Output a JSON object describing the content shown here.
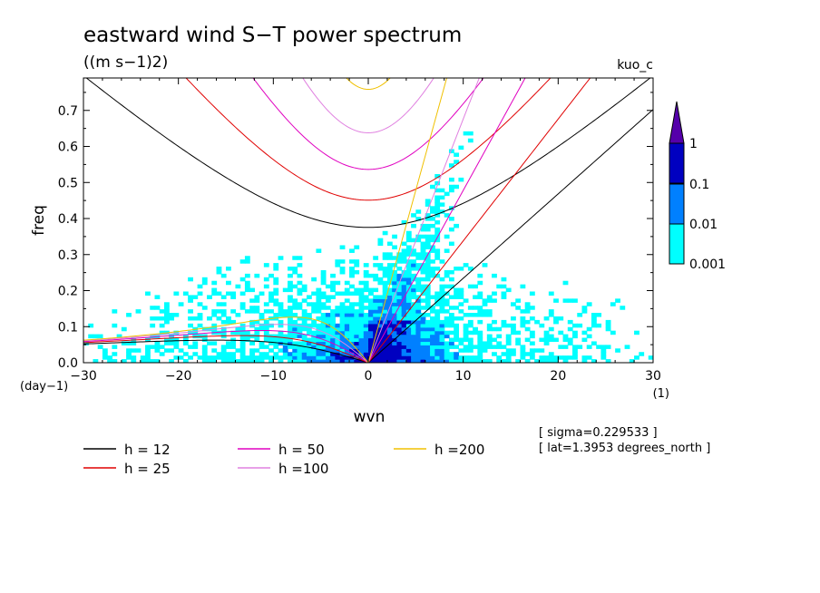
{
  "chart_data": {
    "type": "heatmap",
    "title": "eastward wind S−T power spectrum",
    "subtitle": "((m s−1)2)",
    "model_label": "kuo_c",
    "xlabel": "wvn",
    "ylabel": "freq",
    "x_unit": "(1)",
    "y_unit": "(day−1)",
    "xlim": [
      -30,
      30
    ],
    "ylim": [
      0,
      0.79
    ],
    "x_ticks": [
      -30,
      -20,
      -10,
      0,
      10,
      20,
      30
    ],
    "x_tick_labels": [
      "−30",
      "−20",
      "−10",
      "0",
      "10",
      "20",
      "30"
    ],
    "y_ticks": [
      0.0,
      0.1,
      0.2,
      0.3,
      0.4,
      0.5,
      0.6,
      0.7
    ],
    "y_tick_labels": [
      "0.0",
      "0.1",
      "0.2",
      "0.3",
      "0.4",
      "0.5",
      "0.6",
      "0.7"
    ],
    "colorbar": {
      "levels": [
        "0.001",
        "0.01",
        "0.1",
        "1"
      ],
      "colors": [
        "#00FFFF",
        "#0080FF",
        "#0000C0",
        "#5500AA"
      ]
    },
    "info_lines": [
      "[ sigma=0.229533 ]",
      "[ lat=1.3953 degrees_north ]"
    ],
    "series": [
      {
        "name": "h = 12",
        "h": 12,
        "color": "#000000"
      },
      {
        "name": "h = 25",
        "h": 25,
        "color": "#E00000"
      },
      {
        "name": "h = 50",
        "h": 50,
        "color": "#E000C0"
      },
      {
        "name": "h =100",
        "h": 100,
        "color": "#E080E0"
      },
      {
        "name": "h =200",
        "h": 200,
        "color": "#F0C000"
      }
    ],
    "grid": false,
    "legend_position": "bottom-left"
  }
}
